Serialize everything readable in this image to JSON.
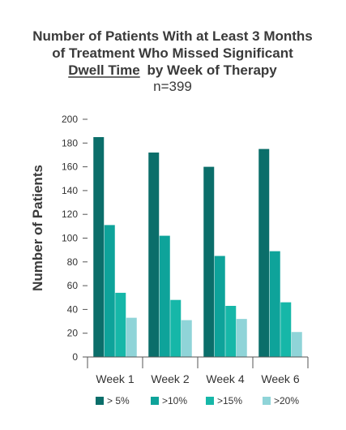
{
  "chart_data": {
    "type": "bar",
    "title_line1": "Number of Patients With at Least 3 Months",
    "title_line2": "of Treatment Who Missed Significant",
    "title_line3_underlined": "Dwell Time",
    "title_line3_rest": "by Week of Therapy",
    "subtitle": "n=399",
    "ylabel": "Number of Patients",
    "xlabel": "",
    "ylim": [
      0,
      200
    ],
    "yticks": [
      0,
      20,
      40,
      60,
      80,
      100,
      120,
      140,
      160,
      180,
      200
    ],
    "categories": [
      "Week 1",
      "Week 2",
      "Week 4",
      "Week 6"
    ],
    "series": [
      {
        "name": "> 5%",
        "color": "#0b6e6a",
        "values": [
          185,
          172,
          160,
          175
        ]
      },
      {
        "name": ">10%",
        "color": "#0ea39a",
        "values": [
          111,
          102,
          85,
          89
        ]
      },
      {
        "name": ">15%",
        "color": "#16b7a8",
        "values": [
          54,
          48,
          43,
          46
        ]
      },
      {
        "name": ">20%",
        "color": "#8fd4d8",
        "values": [
          33,
          31,
          32,
          21
        ]
      }
    ],
    "grid": false,
    "legend_position": "bottom"
  }
}
